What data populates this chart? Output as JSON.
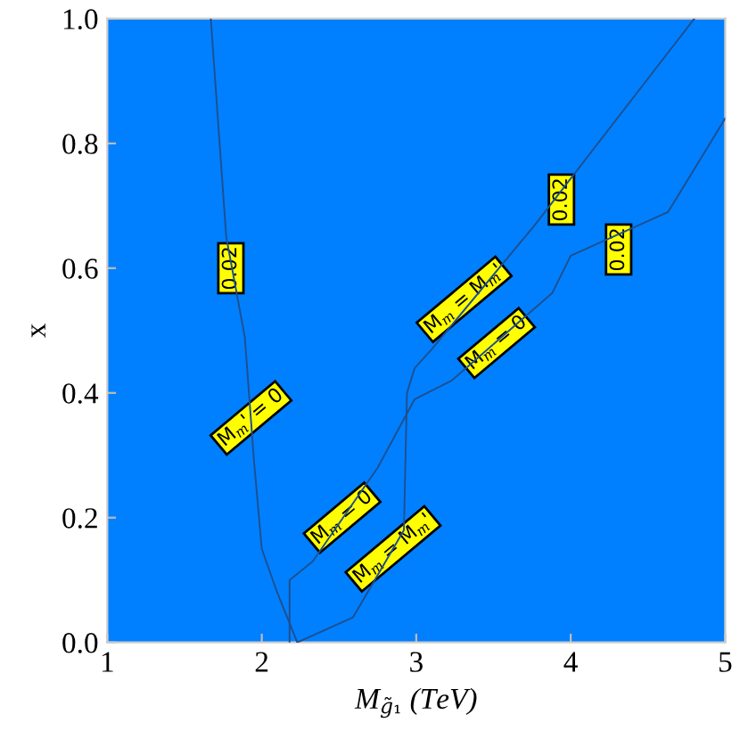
{
  "chart_data": {
    "type": "line",
    "xlabel": "M$_{g̃₁}$ (TeV)",
    "ylabel": "x",
    "xlim": [
      1,
      5
    ],
    "ylim": [
      0,
      1
    ],
    "xticks": [
      1,
      2,
      3,
      4,
      5
    ],
    "yticks": [
      {
        "value": 0,
        "label": "0.0"
      },
      {
        "value": 0.2,
        "label": "0.2"
      },
      {
        "value": 0.4,
        "label": "0.4"
      },
      {
        "value": 0.6,
        "label": "0.6"
      },
      {
        "value": 0.8,
        "label": "0.8"
      },
      {
        "value": 1,
        "label": "1.0"
      }
    ],
    "grid": false,
    "marker": "none",
    "line_style": "solid",
    "bands": [
      {
        "axis": "x",
        "from": 1,
        "to": 5,
        "color": "#0080ff"
      }
    ],
    "series": [
      {
        "color": "#1f4f8f",
        "x": [
          1.67,
          1.77,
          1.89,
          1.95,
          2.0,
          2.1,
          2.23
        ],
        "values": [
          1.0,
          0.65,
          0.49,
          0.29,
          0.15,
          0.08,
          0.0
        ]
      },
      {
        "color": "#1f4f8f",
        "x": [
          2.18,
          2.18,
          2.33,
          2.75,
          2.99,
          3.23,
          3.88,
          4.0,
          4.63,
          5.0
        ],
        "values": [
          0.0,
          0.1,
          0.13,
          0.28,
          0.39,
          0.42,
          0.56,
          0.62,
          0.69,
          0.84
        ]
      },
      {
        "color": "#1f4f8f",
        "x": [
          2.23,
          2.59,
          2.92,
          2.94,
          2.99,
          3.1,
          3.77,
          4.8
        ],
        "values": [
          0.0,
          0.04,
          0.18,
          0.4,
          0.44,
          0.47,
          0.67,
          1.0
        ]
      }
    ],
    "annotations": [
      {
        "text": "0.02",
        "x": 1.8,
        "y": 0.6
      },
      {
        "text": "M$_{m}$' = 0",
        "x": 1.93,
        "y": 0.36
      },
      {
        "text": "M$_{m}$ = 0",
        "x": 2.52,
        "y": 0.2
      },
      {
        "text": "M$_{m}$ = M$_{m}$'",
        "x": 2.85,
        "y": 0.15
      },
      {
        "text": "M$_{m}$ = M$_{m}$'",
        "x": 3.31,
        "y": 0.55
      },
      {
        "text": "M$_{m}$ = 0",
        "x": 3.52,
        "y": 0.48
      },
      {
        "text": "0.02",
        "x": 3.94,
        "y": 0.71
      },
      {
        "text": "0.02",
        "x": 4.31,
        "y": 0.63
      }
    ]
  }
}
